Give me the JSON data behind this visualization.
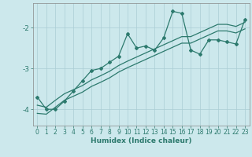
{
  "xlabel": "Humidex (Indice chaleur)",
  "bg_color": "#cce8ec",
  "line_color": "#2d7a6e",
  "grid_color": "#aacdd4",
  "xlim": [
    -0.5,
    23.5
  ],
  "ylim": [
    -4.4,
    -1.4
  ],
  "yticks": [
    -4,
    -3,
    -2
  ],
  "xticks": [
    0,
    1,
    2,
    3,
    4,
    5,
    6,
    7,
    8,
    9,
    10,
    11,
    12,
    13,
    14,
    15,
    16,
    17,
    18,
    19,
    20,
    21,
    22,
    23
  ],
  "main_x": [
    0,
    1,
    2,
    3,
    4,
    5,
    6,
    7,
    8,
    9,
    10,
    11,
    12,
    13,
    14,
    15,
    16,
    17,
    18,
    19,
    20,
    21,
    22,
    23
  ],
  "main_y": [
    -3.7,
    -4.0,
    -4.0,
    -3.8,
    -3.55,
    -3.3,
    -3.05,
    -3.0,
    -2.85,
    -2.7,
    -2.15,
    -2.5,
    -2.45,
    -2.55,
    -2.25,
    -1.6,
    -1.65,
    -2.55,
    -2.65,
    -2.3,
    -2.3,
    -2.35,
    -2.4,
    -1.8
  ],
  "line1_x": [
    0,
    1,
    2,
    3,
    4,
    5,
    6,
    7,
    8,
    9,
    10,
    11,
    12,
    13,
    14,
    15,
    16,
    17,
    18,
    19,
    20,
    21,
    22,
    23
  ],
  "line1_y": [
    -3.9,
    -3.95,
    -3.78,
    -3.62,
    -3.52,
    -3.42,
    -3.28,
    -3.18,
    -3.07,
    -2.93,
    -2.82,
    -2.72,
    -2.62,
    -2.52,
    -2.42,
    -2.32,
    -2.22,
    -2.22,
    -2.12,
    -2.02,
    -1.92,
    -1.92,
    -1.97,
    -1.87
  ],
  "line2_x": [
    0,
    1,
    2,
    3,
    4,
    5,
    6,
    7,
    8,
    9,
    10,
    11,
    12,
    13,
    14,
    15,
    16,
    17,
    18,
    19,
    20,
    21,
    22,
    23
  ],
  "line2_y": [
    -4.1,
    -4.12,
    -3.95,
    -3.78,
    -3.68,
    -3.58,
    -3.44,
    -3.34,
    -3.23,
    -3.09,
    -2.98,
    -2.88,
    -2.78,
    -2.68,
    -2.58,
    -2.48,
    -2.38,
    -2.38,
    -2.28,
    -2.18,
    -2.08,
    -2.08,
    -2.13,
    -2.03
  ],
  "tick_fontsize": 5.5,
  "xlabel_fontsize": 6.5
}
